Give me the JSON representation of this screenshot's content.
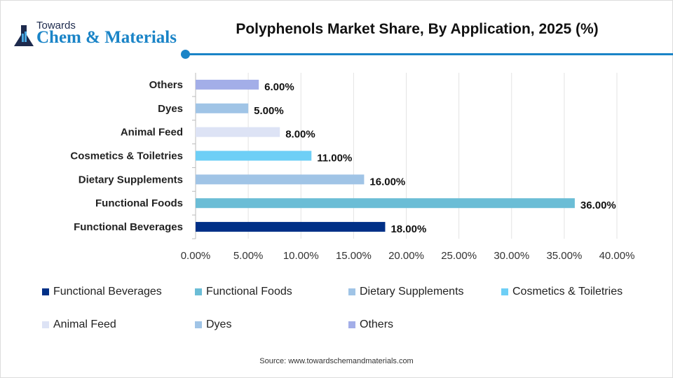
{
  "brand": {
    "line1": "Towards",
    "line2": "Chem & Materials"
  },
  "source": "Source: www.towardschemandmaterials.com",
  "chart_data": {
    "type": "bar",
    "orientation": "horizontal",
    "title": "Polyphenols Market Share, By Application, 2025 (%)",
    "categories": [
      "Functional Beverages",
      "Functional Foods",
      "Dietary Supplements",
      "Cosmetics & Toiletries",
      "Animal Feed",
      "Dyes",
      "Others"
    ],
    "values": [
      18,
      36,
      16,
      11,
      8,
      5,
      6
    ],
    "data_labels": [
      "18.00%",
      "36.00%",
      "16.00%",
      "11.00%",
      "8.00%",
      "5.00%",
      "6.00%"
    ],
    "colors": [
      "#003087",
      "#6bbdd6",
      "#a0c4e6",
      "#6ecff6",
      "#dde3f5",
      "#a0c4e6",
      "#a3aee8"
    ],
    "xlim": [
      0,
      40
    ],
    "xticks": [
      "0.00%",
      "5.00%",
      "10.00%",
      "15.00%",
      "20.00%",
      "25.00%",
      "30.00%",
      "35.00%",
      "40.00%"
    ],
    "grid": true,
    "legend": "bottom"
  }
}
